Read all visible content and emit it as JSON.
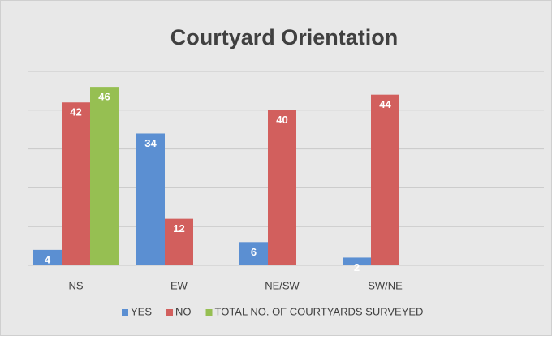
{
  "chart_data": {
    "type": "bar",
    "title": "Courtyard Orientation",
    "categories": [
      "NS",
      "EW",
      "NE/SW",
      "SW/NE",
      null
    ],
    "series": [
      {
        "name": "YES",
        "color": "#5b8fd2",
        "values": [
          4,
          34,
          6,
          2,
          null
        ]
      },
      {
        "name": "NO",
        "color": "#d25f5d",
        "values": [
          42,
          12,
          40,
          44,
          null
        ]
      },
      {
        "name": "TOTAL NO. OF COURTYARDS SURVEYED",
        "color": "#96bf52",
        "values": [
          46,
          null,
          null,
          null,
          null
        ]
      }
    ],
    "ylim": [
      0,
      50
    ],
    "yticks": [
      0,
      10,
      20,
      30,
      40,
      50
    ],
    "grid": true,
    "legend": "bottom"
  }
}
